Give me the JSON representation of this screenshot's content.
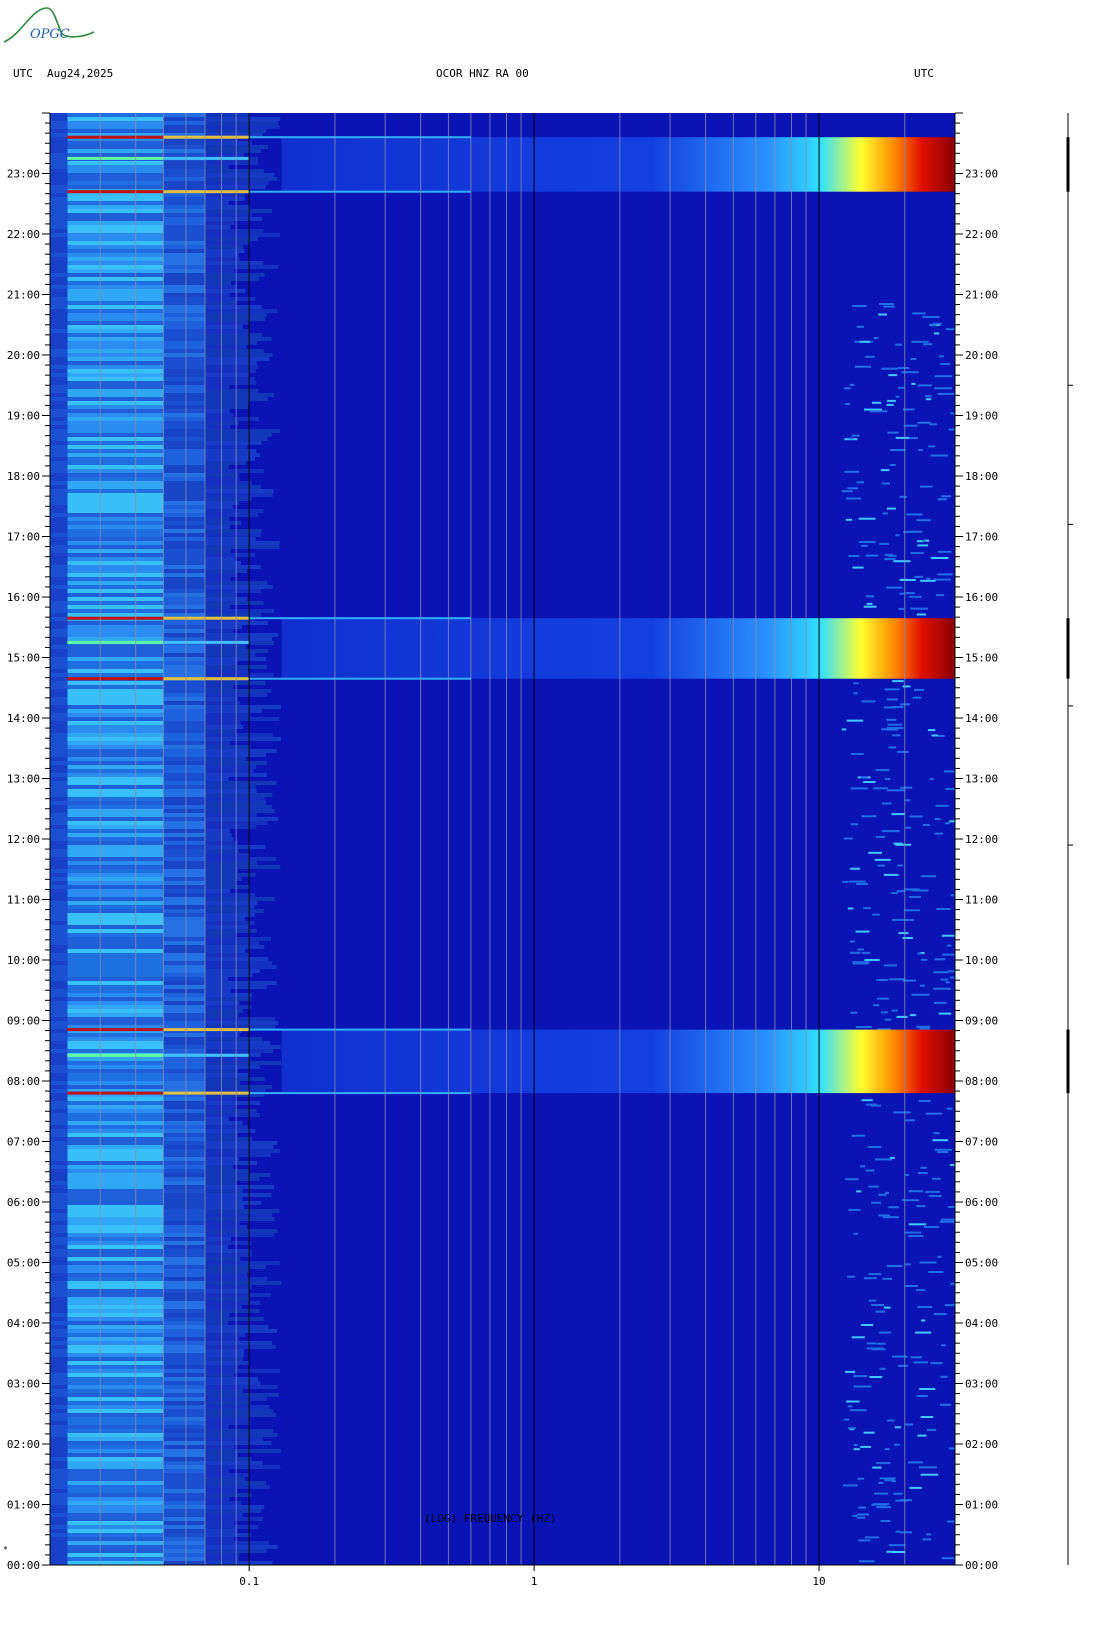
{
  "header": {
    "utc_left": "UTC",
    "date": "Aug24,2025",
    "station": "OCOR HNZ RA 00",
    "utc_right": "UTC"
  },
  "logo": {
    "text": "OPGC"
  },
  "footer_mark": "*",
  "chart_data": {
    "type": "heatmap",
    "title": "OCOR HNZ RA 00",
    "subtitle": "Aug24,2025",
    "xlabel": "(LOG) FREQUENCY (HZ)",
    "ylabel": "UTC",
    "x_scale": "log",
    "xlim": [
      0.02,
      30
    ],
    "ylim_hours": [
      0,
      24
    ],
    "x_ticks": [
      {
        "value": 0.1,
        "label": "0.1"
      },
      {
        "value": 1,
        "label": "1"
      },
      {
        "value": 10,
        "label": "10"
      }
    ],
    "y_ticks": [
      "00:00",
      "01:00",
      "02:00",
      "03:00",
      "04:00",
      "05:00",
      "06:00",
      "07:00",
      "08:00",
      "09:00",
      "10:00",
      "11:00",
      "12:00",
      "13:00",
      "14:00",
      "15:00",
      "16:00",
      "17:00",
      "18:00",
      "19:00",
      "20:00",
      "21:00",
      "22:00",
      "23:00"
    ],
    "colors": {
      "background": "#0a14b4",
      "low_freq_band": "#1e78e6",
      "event_peak": "#8b0000"
    },
    "events_hours": [
      {
        "start": 7.8,
        "end": 8.85
      },
      {
        "start": 14.65,
        "end": 15.65
      },
      {
        "start": 22.7,
        "end": 23.6
      }
    ]
  }
}
